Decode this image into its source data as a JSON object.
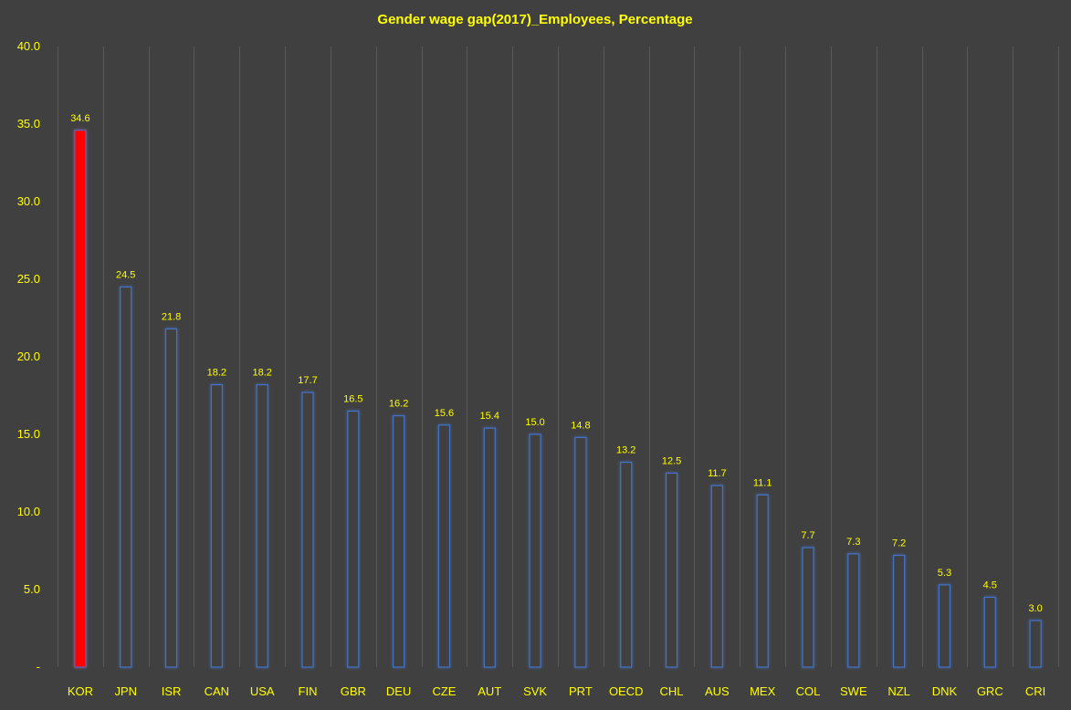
{
  "chart_data": {
    "type": "bar",
    "title": "Gender wage gap(2017)_Employees, Percentage",
    "xlabel": "",
    "ylabel": "",
    "categories": [
      "KOR",
      "JPN",
      "ISR",
      "CAN",
      "USA",
      "FIN",
      "GBR",
      "DEU",
      "CZE",
      "AUT",
      "SVK",
      "PRT",
      "OECD",
      "CHL",
      "AUS",
      "MEX",
      "COL",
      "SWE",
      "NZL",
      "DNK",
      "GRC",
      "CRI"
    ],
    "values": [
      34.6,
      24.5,
      21.8,
      18.2,
      18.2,
      17.7,
      16.5,
      16.2,
      15.6,
      15.4,
      15.0,
      14.8,
      13.2,
      12.5,
      11.7,
      11.1,
      7.7,
      7.3,
      7.2,
      5.3,
      4.5,
      3.0
    ],
    "data_labels": [
      "34.6",
      "24.5",
      "21.8",
      "18.2",
      "18.2",
      "17.7",
      "16.5",
      "16.2",
      "15.6",
      "15.4",
      "15.0",
      "14.8",
      "13.2",
      "12.5",
      "11.7",
      "11.1",
      "7.7",
      "7.3",
      "7.2",
      "5.3",
      "4.5",
      "3.0"
    ],
    "ylim": [
      0,
      40
    ],
    "yticks": [
      0,
      5,
      10,
      15,
      20,
      25,
      30,
      35,
      40
    ],
    "ytick_labels": [
      "-",
      "5.0",
      "10.0",
      "15.0",
      "20.0",
      "25.0",
      "30.0",
      "35.0",
      "40.0"
    ],
    "grid": "vertical",
    "legend": "none",
    "highlight_index": 0,
    "colors": {
      "background": "#404040",
      "title": "#FFFF00",
      "text": "#FFFF00",
      "grid": "#595959",
      "bar_highlight": "#FF0000",
      "bar_outline": "#4472C4",
      "bar_fill": "#404040"
    }
  }
}
